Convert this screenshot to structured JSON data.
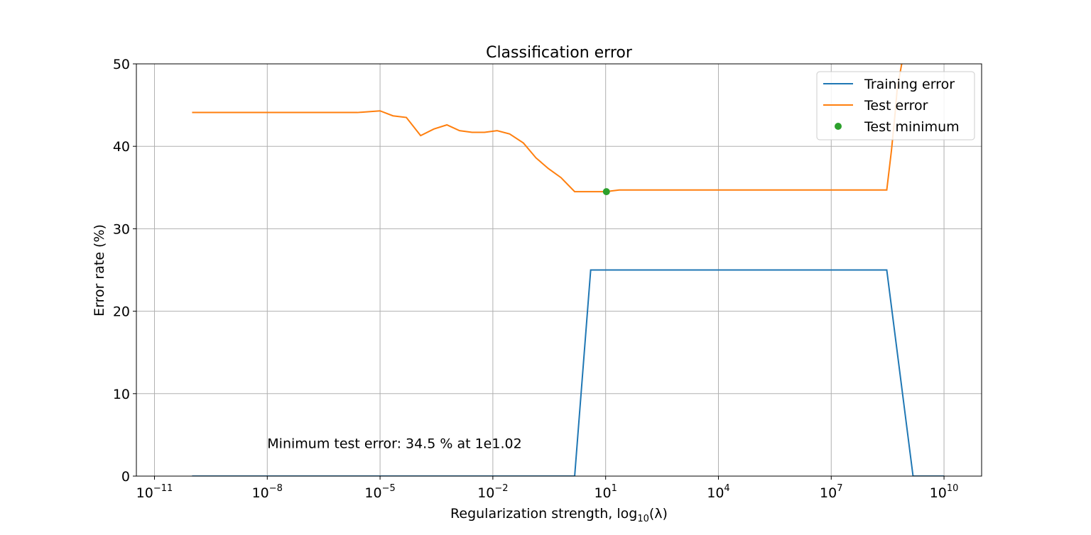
{
  "chart_data": {
    "type": "line",
    "title": "Classification error",
    "xlabel": {
      "prefix": "Regularization strength, log",
      "subscript": "10",
      "suffix": "(λ)"
    },
    "ylabel": "Error rate (%)",
    "x_scale": "log",
    "xlim": [
      3.3e-12,
      100000000000.0
    ],
    "ylim": [
      0,
      50
    ],
    "x_ticks": [
      {
        "value": 1e-11,
        "base": "10",
        "exp": "−11"
      },
      {
        "value": 1e-08,
        "base": "10",
        "exp": "−8"
      },
      {
        "value": 1e-05,
        "base": "10",
        "exp": "−5"
      },
      {
        "value": 0.01,
        "base": "10",
        "exp": "−2"
      },
      {
        "value": 10.0,
        "base": "10",
        "exp": "1"
      },
      {
        "value": 10000.0,
        "base": "10",
        "exp": "4"
      },
      {
        "value": 10000000.0,
        "base": "10",
        "exp": "7"
      },
      {
        "value": 10000000000.0,
        "base": "10",
        "exp": "10"
      }
    ],
    "y_ticks": [
      {
        "value": 0,
        "label": "0"
      },
      {
        "value": 10,
        "label": "10"
      },
      {
        "value": 20,
        "label": "20"
      },
      {
        "value": 30,
        "label": "30"
      },
      {
        "value": 40,
        "label": "40"
      },
      {
        "value": 50,
        "label": "50"
      }
    ],
    "grid": true,
    "legend_position": "top-right",
    "series": [
      {
        "name": "Training error",
        "color": "#1f77b4",
        "style": "line",
        "x": [
          1e-10,
          1e-09,
          1e-08,
          1e-07,
          1e-06,
          1e-05,
          0.0001,
          0.001,
          0.01,
          0.1,
          1.0,
          1.5,
          4.0,
          10.0,
          100.0,
          1000.0,
          10000.0,
          100000.0,
          1000000.0,
          10000000.0,
          100000000.0,
          300000000.0,
          1500000000.0,
          4000000000.0,
          10000000000.0
        ],
        "y": [
          0,
          0,
          0,
          0,
          0,
          0,
          0,
          0,
          0,
          0,
          0,
          0,
          25,
          25,
          25,
          25,
          25,
          25,
          25,
          25,
          25,
          25,
          0,
          0,
          0
        ]
      },
      {
        "name": "Test error",
        "color": "#ff7f0e",
        "style": "line",
        "x": [
          1e-10,
          1e-09,
          1e-08,
          1e-07,
          1e-06,
          2.5e-06,
          1e-05,
          2.2e-05,
          5e-05,
          0.00012,
          0.00027,
          0.0006,
          0.0013,
          0.0028,
          0.006,
          0.013,
          0.028,
          0.065,
          0.14,
          0.3,
          0.65,
          1.5,
          4.0,
          10.0,
          23.0,
          50.0,
          100.0,
          1000.0,
          10000.0,
          100000.0,
          1000000.0,
          10000000.0,
          100000000.0,
          300000000.0,
          400000000.0,
          500000000.0,
          570000000.0,
          900000000.0
        ],
        "y": [
          44.1,
          44.1,
          44.1,
          44.1,
          44.1,
          44.1,
          44.3,
          43.7,
          43.5,
          41.3,
          42.1,
          42.6,
          41.9,
          41.7,
          41.7,
          41.9,
          41.5,
          40.4,
          38.6,
          37.3,
          36.2,
          34.5,
          34.5,
          34.5,
          34.7,
          34.7,
          34.7,
          34.7,
          34.7,
          34.7,
          34.7,
          34.7,
          34.7,
          34.7,
          39.5,
          44,
          47,
          52
        ]
      },
      {
        "name": "Test minimum",
        "color": "#2ca02c",
        "style": "marker",
        "x": [
          10.47
        ],
        "y": [
          34.5
        ]
      }
    ],
    "annotations": [
      {
        "text": "Minimum test error: 34.5 % at 1e1.02",
        "x": 1e-08,
        "y": 3.4
      }
    ]
  }
}
